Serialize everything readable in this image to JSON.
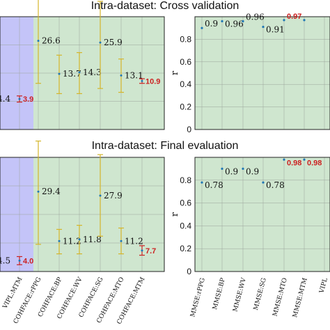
{
  "titles": {
    "top": "Intra-dataset: Cross validation",
    "bottom": "Intra-dataset: Final evaluation"
  },
  "colors": {
    "blue_region": "#c4c4f8",
    "green_region": "#cfe6cf",
    "errorbar": "#d4b52a",
    "point": "#1f77b4",
    "highlight": "#cc2222",
    "text": "#111111"
  },
  "chart_data": [
    {
      "type": "scatter",
      "panel": "top-left",
      "title": "Intra-dataset: Cross validation",
      "categories": [
        "VIPL:MTM",
        "COHFACE:rPPG",
        "COHFACE:BP",
        "COHFACE:WV",
        "COHFACE:SG",
        "COHFACE:MTO",
        "COHFACE:MTM"
      ],
      "points": [
        {
          "category": "VIPL:MTM",
          "mean": 3.9,
          "sd_low": 2.7,
          "sd_high": 5.1,
          "label": "3.9",
          "highlight": true,
          "region": "blue"
        },
        {
          "category": "COHFACE:rPPG",
          "mean": 26.6,
          "sd_low": 10.0,
          "sd_high": 43.0,
          "label": "26.6",
          "highlight": false,
          "region": "green"
        },
        {
          "category": "COHFACE:BP",
          "mean": 13.7,
          "sd_low": 6.0,
          "sd_high": 21.0,
          "label": "13.7",
          "highlight": false,
          "region": "green"
        },
        {
          "category": "COHFACE:WV",
          "mean": 14.3,
          "sd_low": 6.0,
          "sd_high": 22.0,
          "label": "14.3",
          "highlight": false,
          "region": "green"
        },
        {
          "category": "COHFACE:SG",
          "mean": 25.9,
          "sd_low": 8.0,
          "sd_high": 42.0,
          "label": "25.9",
          "highlight": false,
          "region": "green"
        },
        {
          "category": "COHFACE:MTO",
          "mean": 13.1,
          "sd_low": 6.5,
          "sd_high": 19.5,
          "label": "13.1",
          "highlight": false,
          "region": "green"
        },
        {
          "category": "COHFACE:MTM",
          "mean": 10.9,
          "sd_low": 10.0,
          "sd_high": 11.8,
          "label": "10.9",
          "highlight": true,
          "region": "green"
        }
      ],
      "partial_left_label": "4.4"
    },
    {
      "type": "scatter",
      "panel": "bottom-left",
      "title": "Intra-dataset: Final evaluation",
      "categories": [
        "VIPL:MTM",
        "COHFACE:rPPG",
        "COHFACE:BP",
        "COHFACE:WV",
        "COHFACE:SG",
        "COHFACE:MTO",
        "COHFACE:MTM"
      ],
      "points": [
        {
          "category": "VIPL:MTM",
          "mean": 4.0,
          "sd_low": 2.5,
          "sd_high": 5.5,
          "label": "4.0",
          "highlight": true,
          "region": "blue"
        },
        {
          "category": "COHFACE:rPPG",
          "mean": 29.4,
          "sd_low": 10.0,
          "sd_high": 48.0,
          "label": "29.4",
          "highlight": false,
          "region": "green"
        },
        {
          "category": "COHFACE:BP",
          "mean": 11.2,
          "sd_low": 6.5,
          "sd_high": 15.5,
          "label": "11.2",
          "highlight": false,
          "region": "green"
        },
        {
          "category": "COHFACE:WV",
          "mean": 11.8,
          "sd_low": 6.5,
          "sd_high": 17.0,
          "label": "11.8",
          "highlight": false,
          "region": "green"
        },
        {
          "category": "COHFACE:SG",
          "mean": 27.9,
          "sd_low": 13.0,
          "sd_high": 43.0,
          "label": "27.9",
          "highlight": false,
          "region": "green"
        },
        {
          "category": "COHFACE:MTO",
          "mean": 11.2,
          "sd_low": 6.5,
          "sd_high": 16.0,
          "label": "11.2",
          "highlight": false,
          "region": "green"
        },
        {
          "category": "COHFACE:MTM",
          "mean": 7.7,
          "sd_low": 6.0,
          "sd_high": 9.5,
          "label": "7.7",
          "highlight": true,
          "region": "green"
        }
      ],
      "partial_left_label": "4.5",
      "xtick_labels": [
        "VIPL:MTM",
        "COHFACE:rPPG",
        "COHFACE:BP",
        "COHFACE:WV",
        "COHFACE:SG",
        "COHFACE:MTO",
        "COHFACE:MTM"
      ]
    },
    {
      "type": "scatter",
      "panel": "top-right",
      "title": "Intra-dataset: Cross validation",
      "ylabel": "r",
      "ylim": [
        0,
        1
      ],
      "yticks": [
        "0",
        "0.2",
        "0.4",
        "0.6",
        "0.8"
      ],
      "categories": [
        "MMSE:rPPG",
        "MMSE:BP",
        "MMSE:WV",
        "MMSE:SG",
        "MMSE:MTO",
        "MMSE:MTM"
      ],
      "points": [
        {
          "category": "MMSE:rPPG",
          "value": 0.9,
          "label": "0.9",
          "highlight": false
        },
        {
          "category": "MMSE:BP",
          "value": 0.96,
          "label": "0.96",
          "highlight": false
        },
        {
          "category": "MMSE:WV",
          "value": 0.96,
          "label": "0.96",
          "highlight": false
        },
        {
          "category": "MMSE:SG",
          "value": 0.91,
          "label": "0.91",
          "highlight": false
        },
        {
          "category": "MMSE:MTO",
          "value": 0.97,
          "label": "0.97",
          "highlight": true
        },
        {
          "category": "MMSE:MTM",
          "value": 0.97,
          "label": "",
          "highlight": false
        }
      ]
    },
    {
      "type": "scatter",
      "panel": "bottom-right",
      "title": "Intra-dataset: Final evaluation",
      "ylabel": "r",
      "ylim": [
        0,
        1
      ],
      "yticks": [
        "0",
        "0.2",
        "0.4",
        "0.6",
        "0.8"
      ],
      "categories": [
        "MMSE:rPPG",
        "MMSE:BP",
        "MMSE:WV",
        "MMSE:SG",
        "MMSE:MTO",
        "MMSE:MTM"
      ],
      "points": [
        {
          "category": "MMSE:rPPG",
          "value": 0.78,
          "label": "0.78",
          "highlight": false
        },
        {
          "category": "MMSE:BP",
          "value": 0.9,
          "label": "0.9",
          "highlight": false
        },
        {
          "category": "MMSE:WV",
          "value": 0.9,
          "label": "0.9",
          "highlight": false
        },
        {
          "category": "MMSE:SG",
          "value": 0.78,
          "label": "0.78",
          "highlight": false
        },
        {
          "category": "MMSE:MTO",
          "value": 0.98,
          "label": "0.98",
          "highlight": true
        },
        {
          "category": "MMSE:MTM",
          "value": 0.98,
          "label": "0.98",
          "highlight": true
        }
      ],
      "xtick_labels": [
        "MMSE:rPPG",
        "MMSE:BP",
        "MMSE:WV",
        "MMSE:SG",
        "MMSE:MTO",
        "MMSE:MTM",
        "VIPL"
      ]
    }
  ]
}
